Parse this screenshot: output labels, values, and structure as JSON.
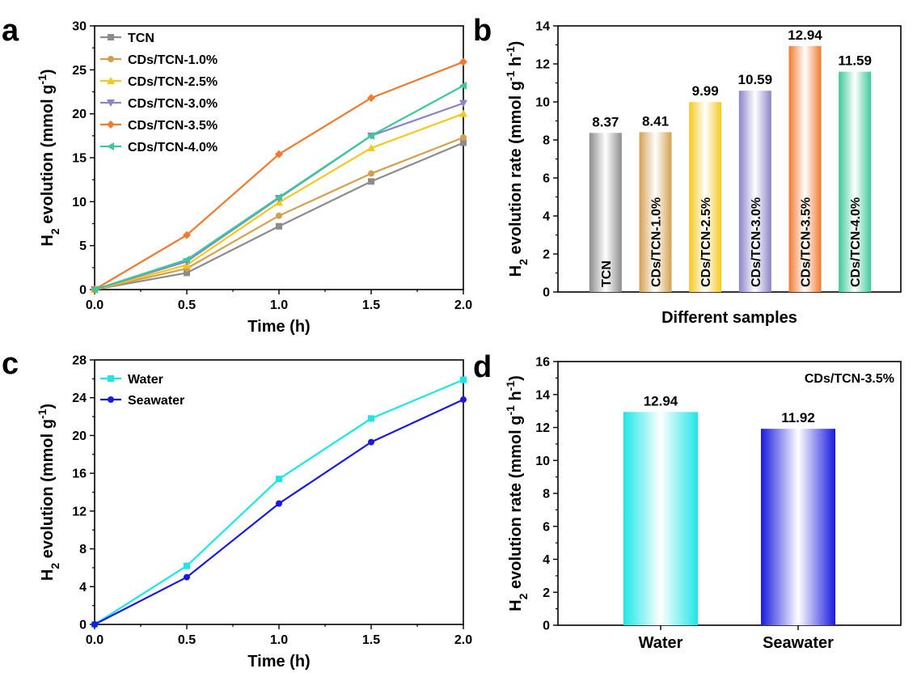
{
  "chart_data": [
    {
      "panel": "a",
      "type": "line",
      "xlabel": "Time (h)",
      "ylabel": "H₂ evolution (mmol g⁻¹)",
      "xlim": [
        0,
        2.0
      ],
      "ylim": [
        0,
        30
      ],
      "xticks": [
        0,
        0.5,
        1.0,
        1.5,
        2.0
      ],
      "xtick_labels": [
        "0.0",
        "0.5",
        "1.0",
        "1.5",
        "2.0"
      ],
      "yticks": [
        0,
        5,
        10,
        15,
        20,
        25,
        30
      ],
      "ytick_labels": [
        "0",
        "5",
        "10",
        "15",
        "20",
        "25",
        "30"
      ],
      "legend": "top-left",
      "x": [
        0,
        0.5,
        1.0,
        1.5,
        2.0
      ],
      "series": [
        {
          "name": "TCN",
          "color": "#8c8c8c",
          "marker": "square",
          "values": [
            0,
            1.9,
            7.2,
            12.3,
            16.7
          ]
        },
        {
          "name": "CDs/TCN-1.0%",
          "color": "#d4a050",
          "marker": "circle",
          "values": [
            0,
            2.4,
            8.4,
            13.2,
            17.3
          ]
        },
        {
          "name": "CDs/TCN-2.5%",
          "color": "#f5c820",
          "marker": "triangle-up",
          "values": [
            0,
            2.8,
            9.9,
            16.1,
            20.0
          ]
        },
        {
          "name": "CDs/TCN-3.0%",
          "color": "#8a84c8",
          "marker": "triangle-down",
          "values": [
            0,
            3.2,
            10.4,
            17.5,
            21.2
          ]
        },
        {
          "name": "CDs/TCN-3.5%",
          "color": "#f07a30",
          "marker": "diamond",
          "values": [
            0,
            6.2,
            15.4,
            21.8,
            25.9
          ]
        },
        {
          "name": "CDs/TCN-4.0%",
          "color": "#3cc89a",
          "marker": "triangle-left",
          "values": [
            0,
            3.4,
            10.5,
            17.5,
            23.2
          ]
        }
      ]
    },
    {
      "panel": "b",
      "type": "bar",
      "xlabel": "Different samples",
      "ylabel": "H₂ evolution rate (mmol g⁻¹ h⁻¹)",
      "ylim": [
        0,
        14
      ],
      "yticks": [
        0,
        2,
        4,
        6,
        8,
        10,
        12,
        14
      ],
      "ytick_labels": [
        "0",
        "2",
        "4",
        "6",
        "8",
        "10",
        "12",
        "14"
      ],
      "categories": [
        "TCN",
        "CDs/TCN-1.0%",
        "CDs/TCN-2.5%",
        "CDs/TCN-3.0%",
        "CDs/TCN-3.5%",
        "CDs/TCN-4.0%"
      ],
      "values": [
        8.37,
        8.41,
        9.99,
        10.59,
        12.94,
        11.59
      ],
      "value_labels": [
        "8.37",
        "8.41",
        "9.99",
        "10.59",
        "12.94",
        "11.59"
      ],
      "colors": [
        "#8c8c8c",
        "#d4a050",
        "#f5c820",
        "#8a84c8",
        "#f07a30",
        "#3cc89a"
      ]
    },
    {
      "panel": "c",
      "type": "line",
      "xlabel": "Time (h)",
      "ylabel": "H₂ evolution (mmol g⁻¹)",
      "xlim": [
        0,
        2.0
      ],
      "ylim": [
        0,
        28
      ],
      "xticks": [
        0,
        0.5,
        1.0,
        1.5,
        2.0
      ],
      "xtick_labels": [
        "0.0",
        "0.5",
        "1.0",
        "1.5",
        "2.0"
      ],
      "yticks": [
        0,
        4,
        8,
        12,
        16,
        20,
        24,
        28
      ],
      "ytick_labels": [
        "0",
        "4",
        "8",
        "12",
        "16",
        "20",
        "24",
        "28"
      ],
      "legend": "top-left",
      "x": [
        0,
        0.5,
        1.0,
        1.5,
        2.0
      ],
      "series": [
        {
          "name": "Water",
          "color": "#1ee6e6",
          "marker": "square",
          "values": [
            0,
            6.2,
            15.4,
            21.8,
            25.9
          ]
        },
        {
          "name": "Seawater",
          "color": "#1a1ae0",
          "marker": "circle",
          "values": [
            0,
            5.0,
            12.8,
            19.3,
            23.8
          ]
        }
      ]
    },
    {
      "panel": "d",
      "type": "bar",
      "xlabel": "",
      "ylabel": "H₂ evolution rate (mmol g⁻¹ h⁻¹)",
      "annotation": "CDs/TCN-3.5%",
      "ylim": [
        0,
        16
      ],
      "yticks": [
        0,
        2,
        4,
        6,
        8,
        10,
        12,
        14,
        16
      ],
      "ytick_labels": [
        "0",
        "2",
        "4",
        "6",
        "8",
        "10",
        "12",
        "14",
        "16"
      ],
      "categories": [
        "Water",
        "Seawater"
      ],
      "values": [
        12.94,
        11.92
      ],
      "value_labels": [
        "12.94",
        "11.92"
      ],
      "colors": [
        "#1ee6e6",
        "#1a1ae0"
      ]
    }
  ]
}
